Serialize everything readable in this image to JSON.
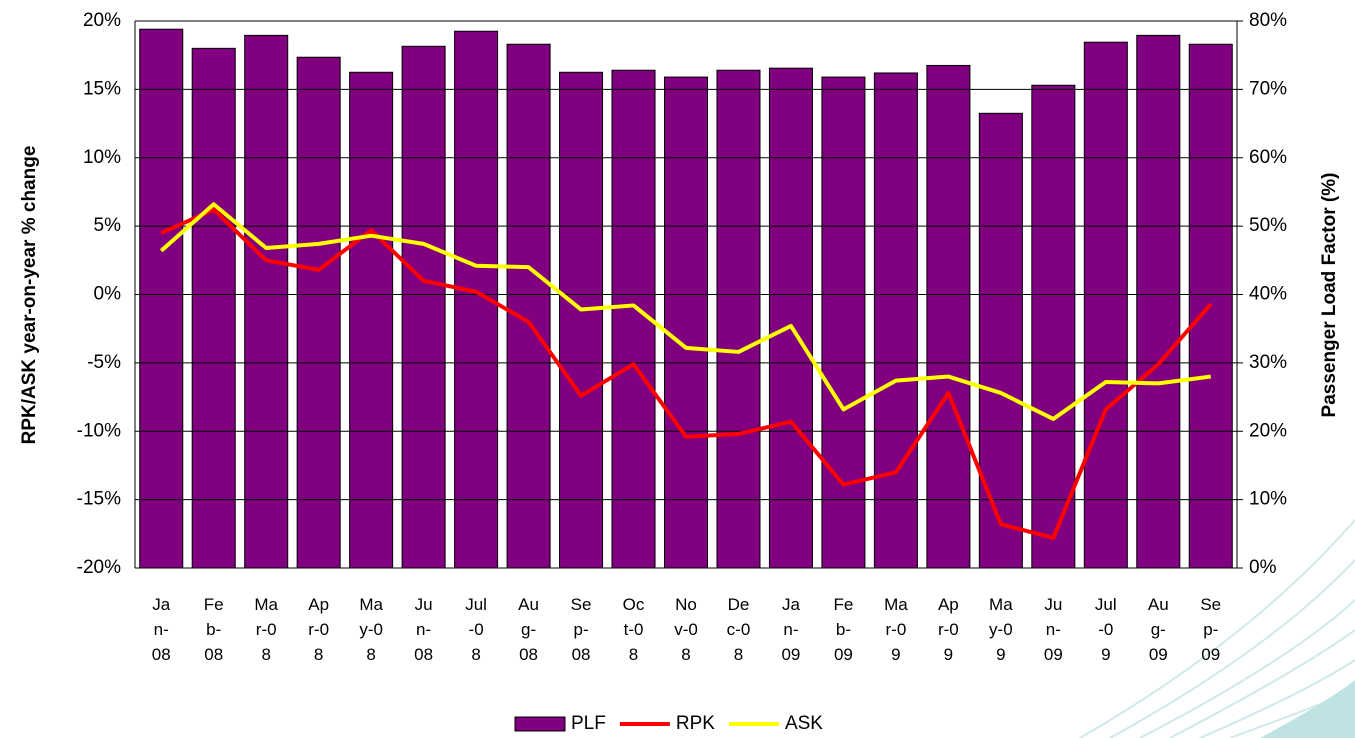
{
  "chart_data": {
    "type": "bar_line",
    "ylabel": "RPK/ASK year-on-year % change",
    "y2label": "Passenger Load Factor (%)",
    "categories": [
      "Jan-08",
      "Feb-08",
      "Mar-08",
      "Apr-08",
      "May-08",
      "Jun-08",
      "Jul-08",
      "Aug-08",
      "Sep-08",
      "Oct-08",
      "Nov-08",
      "Dec-08",
      "Jan-09",
      "Feb-09",
      "Mar-09",
      "Apr-09",
      "May-09",
      "Jun-09",
      "Jul-09",
      "Aug-09",
      "Sep-09"
    ],
    "series": [
      {
        "name": "PLF",
        "color": "#800080",
        "kind": "bar",
        "axis": "y2",
        "values": [
          78.8,
          76.0,
          77.9,
          74.7,
          72.5,
          76.3,
          78.5,
          76.6,
          72.5,
          72.8,
          71.8,
          72.8,
          73.1,
          71.8,
          72.4,
          73.5,
          66.5,
          70.6,
          76.9,
          77.9,
          76.6
        ]
      },
      {
        "name": "RPK",
        "color": "#ff0000",
        "kind": "line",
        "values": [
          4.5,
          6.2,
          2.5,
          1.8,
          4.7,
          1.0,
          0.2,
          -2.0,
          -7.4,
          -5.1,
          -10.4,
          -10.2,
          -9.3,
          -13.9,
          -13.0,
          -7.2,
          -16.8,
          -17.8,
          -8.4,
          -5.1,
          -0.7
        ]
      },
      {
        "name": "ASK",
        "color": "#ffff00",
        "kind": "line",
        "values": [
          3.2,
          6.6,
          3.4,
          3.7,
          4.3,
          3.7,
          2.1,
          2.0,
          -1.1,
          -0.8,
          -3.9,
          -4.2,
          -2.3,
          -8.4,
          -6.3,
          -6.0,
          -7.2,
          -9.1,
          -6.4,
          -6.5,
          -6.0
        ]
      }
    ],
    "ylim": [
      -20,
      20
    ],
    "yticks": [
      {
        "value": -20,
        "label": "-20%"
      },
      {
        "value": -15,
        "label": "-15%"
      },
      {
        "value": -10,
        "label": "-10%"
      },
      {
        "value": -5,
        "label": "-5%"
      },
      {
        "value": 0,
        "label": "0%"
      },
      {
        "value": 5,
        "label": "5%"
      },
      {
        "value": 10,
        "label": "10%"
      },
      {
        "value": 15,
        "label": "15%"
      },
      {
        "value": 20,
        "label": "20%"
      }
    ],
    "y2lim": [
      0,
      80
    ],
    "y2ticks": [
      {
        "value": 0,
        "label": "0%"
      },
      {
        "value": 10,
        "label": "10%"
      },
      {
        "value": 20,
        "label": "20%"
      },
      {
        "value": 30,
        "label": "30%"
      },
      {
        "value": 40,
        "label": "40%"
      },
      {
        "value": 50,
        "label": "50%"
      },
      {
        "value": 60,
        "label": "60%"
      },
      {
        "value": 70,
        "label": "70%"
      },
      {
        "value": 80,
        "label": "80%"
      }
    ],
    "grid": true,
    "legend": "bottom"
  }
}
